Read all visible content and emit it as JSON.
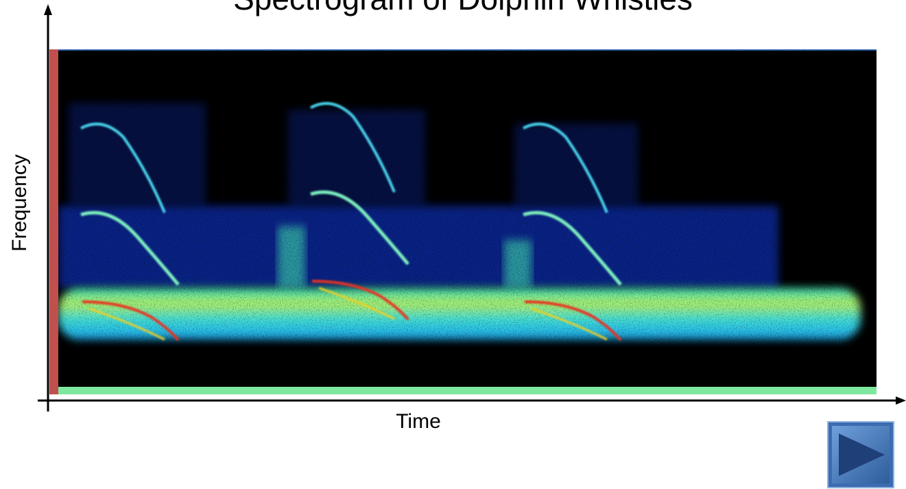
{
  "title": "Spectrogram of Dolphin Whistles",
  "y_axis_label": "Frequency",
  "x_axis_label": "Time"
}
